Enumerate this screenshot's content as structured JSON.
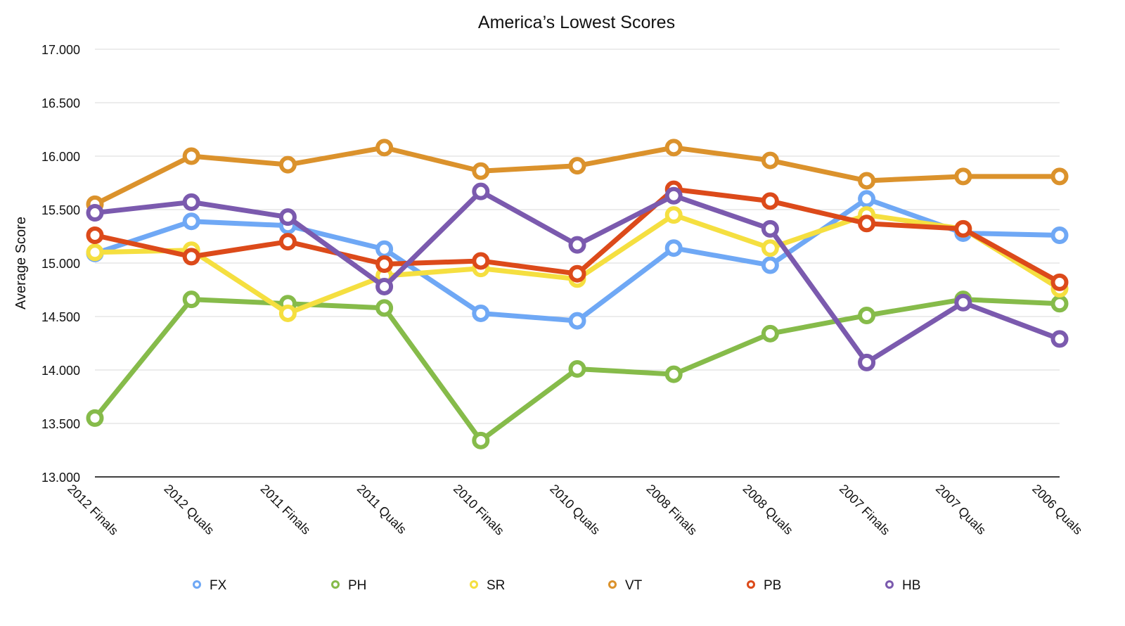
{
  "chart_data": {
    "type": "line",
    "title": "America’s Lowest Scores",
    "xlabel": "",
    "ylabel": "Average Score",
    "ylim": [
      13.0,
      17.0
    ],
    "yticks": [
      "13.000",
      "13.500",
      "14.000",
      "14.500",
      "15.000",
      "15.500",
      "16.000",
      "16.500",
      "17.000"
    ],
    "grid": true,
    "legend": "bottom",
    "categories": [
      "2012 Finals",
      "2012 Quals",
      "2011 Finals",
      "2011 Quals",
      "2010 Finals",
      "2010 Quals",
      "2008 Finals",
      "2008 Quals",
      "2007 Finals",
      "2007 Quals",
      "2006 Quals"
    ],
    "series": [
      {
        "name": "FX",
        "color": "#6fa8f5",
        "values": [
          15.09,
          15.39,
          15.35,
          15.13,
          14.53,
          14.46,
          15.14,
          14.98,
          15.6,
          15.28,
          15.26
        ]
      },
      {
        "name": "PH",
        "color": "#86bb4a",
        "values": [
          13.55,
          14.66,
          14.62,
          14.58,
          13.34,
          14.01,
          13.96,
          14.34,
          14.51,
          14.66,
          14.62
        ]
      },
      {
        "name": "SR",
        "color": "#f5df40",
        "values": [
          15.1,
          15.12,
          14.53,
          14.88,
          14.95,
          14.85,
          15.45,
          15.14,
          15.45,
          15.32,
          14.76
        ]
      },
      {
        "name": "VT",
        "color": "#db922c",
        "values": [
          15.55,
          16.0,
          15.92,
          16.08,
          15.86,
          15.91,
          16.08,
          15.96,
          15.77,
          15.81,
          15.81
        ]
      },
      {
        "name": "PB",
        "color": "#dc4a1a",
        "values": [
          15.26,
          15.06,
          15.2,
          14.99,
          15.02,
          14.9,
          15.69,
          15.58,
          15.37,
          15.32,
          14.82
        ]
      },
      {
        "name": "HB",
        "color": "#7b5aae",
        "values": [
          15.47,
          15.57,
          15.43,
          14.78,
          15.67,
          15.17,
          15.63,
          15.32,
          14.07,
          14.63,
          14.29
        ]
      }
    ]
  }
}
